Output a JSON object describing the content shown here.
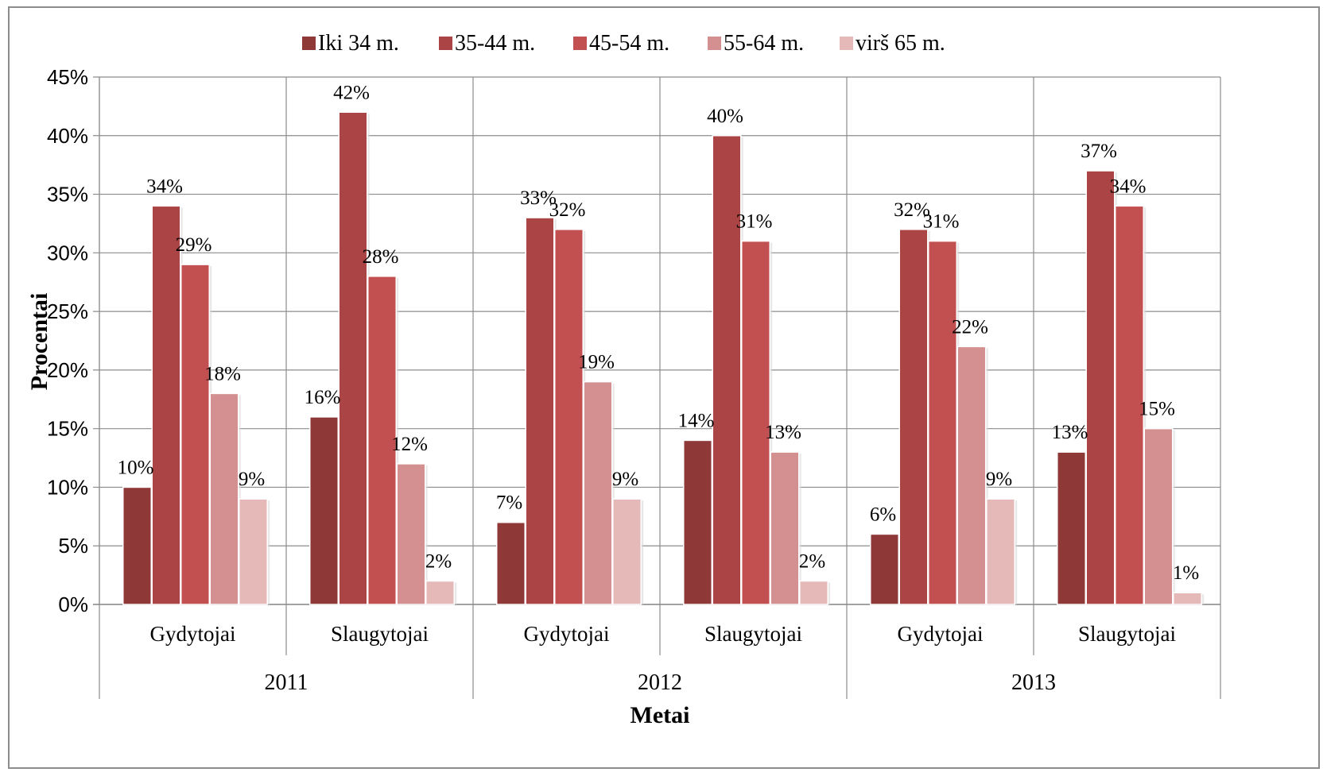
{
  "chart_data": {
    "type": "bar",
    "title": "",
    "xlabel": "Metai",
    "ylabel": "Procentai",
    "ylim": [
      0,
      45
    ],
    "yticks": [
      "0%",
      "5%",
      "10%",
      "15%",
      "20%",
      "25%",
      "30%",
      "35%",
      "40%",
      "45%"
    ],
    "grid": true,
    "legend_position": "top",
    "groups": [
      {
        "label": "2011",
        "categories": [
          "Gydytojai",
          "Slaugytojai"
        ]
      },
      {
        "label": "2012",
        "categories": [
          "Gydytojai",
          "Slaugytojai"
        ]
      },
      {
        "label": "2013",
        "categories": [
          "Gydytojai",
          "Slaugytojai"
        ]
      }
    ],
    "categories": [
      "Gydytojai",
      "Slaugytojai",
      "Gydytojai",
      "Slaugytojai",
      "Gydytojai",
      "Slaugytojai"
    ],
    "series": [
      {
        "name": "Iki 34 m.",
        "color": "#8e3838",
        "values": [
          10,
          16,
          7,
          14,
          6,
          13
        ]
      },
      {
        "name": "35-44 m.",
        "color": "#ab4444",
        "values": [
          34,
          42,
          33,
          40,
          32,
          37
        ]
      },
      {
        "name": "45-54 m.",
        "color": "#c25050",
        "values": [
          29,
          28,
          32,
          31,
          31,
          34
        ]
      },
      {
        "name": "55-64 m.",
        "color": "#d49090",
        "values": [
          18,
          12,
          19,
          13,
          22,
          15
        ]
      },
      {
        "name": "virš 65 m.",
        "color": "#e6b9b9",
        "values": [
          9,
          2,
          9,
          2,
          9,
          1
        ]
      }
    ],
    "value_suffix": "%"
  }
}
